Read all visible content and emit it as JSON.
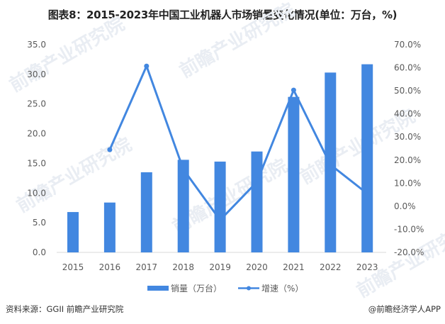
{
  "title": "图表8：2015-2023年中国工业机器人市场销量变化情况(单位：万台，%)",
  "chart_data": {
    "type": "bar+line",
    "title": "图表8：2015-2023年中国工业机器人市场销量变化情况(单位：万台，%)",
    "categories": [
      "2015",
      "2016",
      "2017",
      "2018",
      "2019",
      "2020",
      "2021",
      "2022",
      "2023"
    ],
    "series": [
      {
        "name": "销量（万台）",
        "type": "bar",
        "axis": "left",
        "values": [
          6.8,
          8.4,
          13.5,
          15.6,
          15.3,
          17.0,
          26.2,
          30.3,
          31.7
        ]
      },
      {
        "name": "增速（%）",
        "type": "line",
        "axis": "right",
        "values": [
          null,
          24.5,
          60.7,
          16.0,
          -6.0,
          10.5,
          50.3,
          18.0,
          5.5
        ]
      }
    ],
    "left_axis": {
      "min": 0,
      "max": 35,
      "step": 5,
      "ticks": [
        "0.0",
        "5.0",
        "10.0",
        "15.0",
        "20.0",
        "25.0",
        "30.0",
        "35.0"
      ]
    },
    "right_axis": {
      "min": -20,
      "max": 70,
      "step": 10,
      "ticks": [
        "-20.0%",
        "-10.0%",
        "0.0%",
        "10.0%",
        "20.0%",
        "30.0%",
        "40.0%",
        "50.0%",
        "60.0%",
        "70.0%"
      ]
    },
    "grid": false,
    "legend_position": "bottom",
    "colors": {
      "bar": "#4287E0",
      "line": "#4287E0",
      "axis_text": "#595959",
      "baseline": "#d9d9d9"
    }
  },
  "legend": {
    "bar_label": "销量（万台）",
    "line_label": "增速（%）"
  },
  "footer": {
    "source": "资料来源：GGII 前瞻产业研究院",
    "credit": "@前瞻经济学人APP"
  },
  "watermark": "前瞻产业研究院"
}
